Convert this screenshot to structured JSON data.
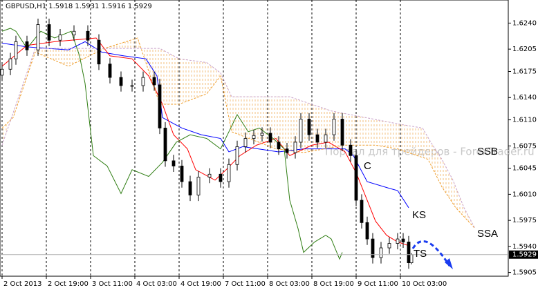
{
  "chart_data": {
    "type": "candlestick",
    "title": "GBPUSD,H1  1.5918 1.5931 1.5916 1.5929",
    "x": [
      0,
      3,
      5,
      9,
      13,
      17,
      21,
      26,
      31,
      35,
      39,
      43,
      47,
      51,
      55,
      57,
      59,
      62,
      65,
      68,
      71,
      75,
      79,
      82,
      85,
      88,
      91,
      94,
      97,
      100,
      103,
      106,
      108,
      111,
      114,
      117,
      120,
      123,
      126,
      128,
      130,
      132,
      134,
      137,
      140,
      143,
      145,
      147,
      148
    ],
    "open": [
      1.617,
      1.6178,
      1.6192,
      1.6215,
      1.6204,
      1.6238,
      1.6217,
      1.6224,
      1.6229,
      1.6217,
      1.6185,
      1.6167,
      1.6156,
      1.6156,
      1.6167,
      1.6157,
      1.6099,
      1.6055,
      1.6048,
      1.6027,
      1.6009,
      1.6033,
      1.6037,
      1.6027,
      1.605,
      1.6074,
      1.6085,
      1.6089,
      1.6092,
      1.608,
      1.6071,
      1.6066,
      1.608,
      1.6111,
      1.609,
      1.608,
      1.609,
      1.6111,
      1.6076,
      1.6062,
      1.6002,
      1.5972,
      1.595,
      1.5925,
      1.5938,
      1.5944,
      1.595,
      1.5946,
      1.5918
    ],
    "high": [
      1.6186,
      1.62,
      1.6223,
      1.6223,
      1.6246,
      1.6246,
      1.6232,
      1.6237,
      1.6237,
      1.6225,
      1.6193,
      1.6175,
      1.6164,
      1.6175,
      1.6175,
      1.6165,
      1.6107,
      1.6063,
      1.6056,
      1.6035,
      1.6041,
      1.6045,
      1.6045,
      1.6058,
      1.6082,
      1.6093,
      1.6097,
      1.61,
      1.61,
      1.6088,
      1.6079,
      1.6088,
      1.6119,
      1.6119,
      1.6098,
      1.6098,
      1.6119,
      1.6119,
      1.6084,
      1.607,
      1.601,
      1.598,
      1.5958,
      1.5946,
      1.5952,
      1.5958,
      1.5958,
      1.5954,
      1.5931
    ],
    "low": [
      1.6162,
      1.617,
      1.6184,
      1.6196,
      1.6196,
      1.6209,
      1.6209,
      1.6216,
      1.6209,
      1.6177,
      1.6159,
      1.6148,
      1.6148,
      1.6148,
      1.6149,
      1.6091,
      1.6047,
      1.604,
      1.6019,
      1.6001,
      1.6001,
      1.6025,
      1.6019,
      1.6019,
      1.6042,
      1.6066,
      1.6077,
      1.6081,
      1.6072,
      1.6063,
      1.6058,
      1.6058,
      1.6072,
      1.6082,
      1.6072,
      1.6072,
      1.6082,
      1.6068,
      1.6054,
      1.5994,
      1.5964,
      1.5942,
      1.5917,
      1.5917,
      1.593,
      1.5936,
      1.5938,
      1.591,
      1.5916
    ],
    "close": [
      1.6178,
      1.6192,
      1.6215,
      1.6204,
      1.6238,
      1.6217,
      1.6224,
      1.6229,
      1.6217,
      1.6185,
      1.6167,
      1.6156,
      1.6156,
      1.6167,
      1.6157,
      1.6099,
      1.6055,
      1.6048,
      1.6027,
      1.6009,
      1.6033,
      1.6037,
      1.6027,
      1.605,
      1.6074,
      1.6085,
      1.6089,
      1.6092,
      1.608,
      1.6071,
      1.6066,
      1.608,
      1.6111,
      1.609,
      1.608,
      1.609,
      1.6111,
      1.6076,
      1.6062,
      1.6002,
      1.5972,
      1.595,
      1.5925,
      1.5938,
      1.5944,
      1.595,
      1.5946,
      1.5918,
      1.5929
    ],
    "up_color": "#ffffff",
    "down_color": "#000000",
    "lines": [
      {
        "color": "#0000ff",
        "dashed": false,
        "x": [
          0,
          9,
          24,
          30,
          36,
          44,
          52,
          56,
          58,
          65,
          72,
          79,
          82,
          87,
          100,
          109,
          124,
          127,
          132,
          140,
          143,
          147
        ],
        "values": [
          1.6213,
          1.6208,
          1.6204,
          1.6215,
          1.6201,
          1.6196,
          1.6192,
          1.6169,
          1.6113,
          1.6099,
          1.609,
          1.6085,
          1.6067,
          1.6074,
          1.6067,
          1.6071,
          1.6071,
          1.6062,
          1.6027,
          1.6018,
          1.6015,
          1.5992
        ]
      },
      {
        "color": "#ff0000",
        "dashed": false,
        "x": [
          0,
          9,
          19,
          34,
          39,
          47,
          53,
          58,
          62,
          67,
          70,
          77,
          81,
          86,
          92,
          99,
          104,
          112,
          118,
          124,
          128,
          132,
          135,
          139,
          143,
          147
        ],
        "values": [
          1.6182,
          1.621,
          1.6215,
          1.622,
          1.6196,
          1.6192,
          1.6169,
          1.6131,
          1.609,
          1.6071,
          1.6043,
          1.6029,
          1.6043,
          1.6062,
          1.6076,
          1.6085,
          1.6062,
          1.6076,
          1.608,
          1.6067,
          1.6039,
          1.6002,
          1.5974,
          1.5955,
          1.5946,
          1.5941
        ]
      },
      {
        "color": "#2e7d12",
        "dashed": false,
        "x": [
          0,
          3,
          5,
          9,
          14,
          19,
          25,
          28,
          30,
          33,
          38,
          43,
          47,
          53,
          58,
          63,
          68,
          74,
          79,
          82,
          85,
          89,
          93,
          98,
          102,
          104,
          107,
          109,
          113,
          117,
          119,
          122,
          123
        ],
        "values": [
          1.6229,
          1.6233,
          1.6229,
          1.6206,
          1.6229,
          1.622,
          1.6229,
          1.6196,
          1.6159,
          1.6062,
          1.6048,
          1.6011,
          1.6043,
          1.6034,
          1.6053,
          1.608,
          1.609,
          1.6085,
          1.6071,
          1.6094,
          1.6117,
          1.6094,
          1.6099,
          1.6085,
          1.6071,
          1.6002,
          1.5964,
          1.5932,
          1.5946,
          1.5955,
          1.595,
          1.5923,
          1.5932
        ]
      },
      {
        "color": "#f0a030",
        "dashed": true,
        "x": [
          0,
          4,
          12,
          24,
          37,
          49,
          57,
          64,
          74,
          79,
          83,
          99,
          109,
          124,
          135,
          143,
          154,
          159,
          164,
          171
        ],
        "values": [
          1.6099,
          1.6113,
          1.6201,
          1.6182,
          1.6206,
          1.622,
          1.6131,
          1.6131,
          1.6145,
          1.6169,
          1.6094,
          1.6071,
          1.6066,
          1.6076,
          1.6076,
          1.6071,
          1.6057,
          1.602,
          1.5992,
          1.5964
        ]
      },
      {
        "color": "#c8a0c8",
        "dashed": true,
        "x": [
          0,
          12,
          49,
          57,
          64,
          74,
          79,
          83,
          104,
          119,
          144,
          152,
          155,
          159,
          163,
          167,
          171
        ],
        "values": [
          1.6076,
          1.6206,
          1.6206,
          1.6206,
          1.6192,
          1.6187,
          1.6173,
          1.6141,
          1.6141,
          1.6122,
          1.6104,
          1.6099,
          1.608,
          1.6057,
          1.6029,
          1.5992,
          1.5964
        ]
      }
    ],
    "cloud": true,
    "xlim": [
      -0.75,
      183
    ],
    "ylim": [
      1.59,
      1.6271
    ],
    "yticks": [
      {
        "value": 1.624,
        "label": "1.6240"
      },
      {
        "value": 1.6205,
        "label": "1.6205"
      },
      {
        "value": 1.6175,
        "label": "1.6175"
      },
      {
        "value": 1.614,
        "label": "1.6140"
      },
      {
        "value": 1.611,
        "label": "1.6110"
      },
      {
        "value": 1.6075,
        "label": "1.6075"
      },
      {
        "value": 1.6045,
        "label": "1.6045"
      },
      {
        "value": 1.601,
        "label": "1.6010"
      },
      {
        "value": 1.5975,
        "label": "1.5975"
      },
      {
        "value": 1.594,
        "label": "1.5940"
      },
      {
        "value": 1.5905,
        "label": "1.5905"
      }
    ],
    "xticks": [
      {
        "value": 0,
        "label": "2 Oct 2013"
      },
      {
        "value": 16,
        "label": "2 Oct 19:00"
      },
      {
        "value": 32,
        "label": "3 Oct 11:00"
      },
      {
        "value": 48,
        "label": "4 Oct 03:00"
      },
      {
        "value": 64,
        "label": "4 Oct 19:00"
      },
      {
        "value": 80,
        "label": "7 Oct 11:00"
      },
      {
        "value": 96,
        "label": "8 Oct 03:00"
      },
      {
        "value": 112,
        "label": "8 Oct 19:00"
      },
      {
        "value": 128,
        "label": "9 Oct 11:00"
      },
      {
        "value": 144,
        "label": "10 Oct 03:00"
      }
    ],
    "grid": true,
    "annotations": [
      "C",
      "KS",
      "TS",
      "SSB",
      "SSA"
    ],
    "watermark": "Портал для трейдеров - ForexTrader.ru"
  }
}
